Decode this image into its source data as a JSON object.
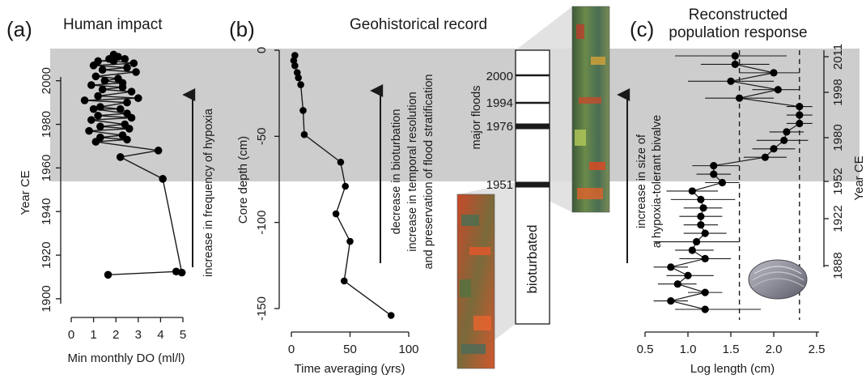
{
  "panel_letters": [
    "(a)",
    "(b)",
    "(c)"
  ],
  "colors": {
    "band": "#cdcdcd",
    "line": "#1a1a1a",
    "marker": "#000000"
  },
  "panel_a": {
    "title": "Human impact",
    "arrow_label": "increase in frequency of hypoxia"
  },
  "panel_b": {
    "title": "Geohistorical record",
    "arrow_label_lines": [
      "decrease in bioturbation",
      "increase in temporal resolution",
      "and preservation of flood stratification"
    ],
    "core": {
      "floods_title": "major floods",
      "flood_years": [
        "2000",
        "1994",
        "1976",
        "1951"
      ],
      "bioturbated_label": "bioturbated"
    }
  },
  "panel_c": {
    "title_lines": [
      "Reconstructed",
      "population response"
    ],
    "arrow_label_lines": [
      "increase in size of",
      "a hypoxia-tolerant bivalve"
    ],
    "right_axis_label": "Year CE",
    "right_axis_ticks": [
      "2011",
      "1998",
      "1980",
      "1952",
      "1922",
      "1888"
    ],
    "dashed_lines_at": [
      1.6,
      2.3
    ]
  },
  "chart_data": [
    {
      "type": "line",
      "panel": "(a)",
      "title": "Human impact",
      "xlabel": "Min monthly DO (ml/l)",
      "ylabel": "Year CE",
      "xlim": [
        0,
        5.2
      ],
      "ylim": [
        1894,
        2015
      ],
      "xticks": [
        0,
        1,
        2,
        3,
        4,
        5
      ],
      "yticks": [
        1900,
        1920,
        1940,
        1960,
        1980,
        2000
      ],
      "shaded_band_y": [
        1950,
        2012
      ],
      "series": [
        {
          "points": [
            [
              1.65,
              1911
            ],
            [
              4.7,
              1912.5
            ],
            [
              4.95,
              1912
            ],
            [
              4.1,
              1955
            ],
            [
              2.2,
              1965
            ],
            [
              3.9,
              1968
            ],
            [
              1.1,
              1972
            ],
            [
              2.5,
              1973
            ],
            [
              1.3,
              1974
            ],
            [
              2.3,
              1975
            ],
            [
              0.8,
              1977
            ],
            [
              2.6,
              1978
            ],
            [
              1.3,
              1979
            ],
            [
              2.4,
              1980
            ],
            [
              0.9,
              1982
            ],
            [
              2.7,
              1983
            ],
            [
              1.2,
              1984
            ],
            [
              2.5,
              1985
            ],
            [
              1.0,
              1987
            ],
            [
              2.2,
              1987
            ],
            [
              1.3,
              1988
            ],
            [
              2.5,
              1990
            ],
            [
              0.6,
              1991
            ],
            [
              3.0,
              1992
            ],
            [
              1.2,
              1993
            ],
            [
              2.7,
              1995
            ],
            [
              1.4,
              1996
            ],
            [
              2.3,
              1997
            ],
            [
              0.9,
              1998
            ],
            [
              2.3,
              1999
            ],
            [
              1.5,
              2000
            ],
            [
              2.1,
              2001
            ],
            [
              1.1,
              2002
            ],
            [
              2.9,
              2004
            ],
            [
              1.4,
              2005
            ],
            [
              2.5,
              2006
            ],
            [
              1.0,
              2007
            ],
            [
              2.8,
              2008
            ],
            [
              1.9,
              2009
            ],
            [
              1.2,
              2009
            ],
            [
              2.4,
              2010
            ],
            [
              1.7,
              2010
            ],
            [
              2.1,
              2011
            ],
            [
              1.9,
              2012
            ]
          ]
        }
      ]
    },
    {
      "type": "line",
      "panel": "(b)",
      "title": "Geohistorical record",
      "xlabel": "Time averaging (yrs)",
      "ylabel": "Core depth (cm)",
      "xlim": [
        0,
        105
      ],
      "ylim": [
        0,
        -158
      ],
      "xticks": [
        0,
        50,
        100
      ],
      "yticks": [
        0,
        -50,
        -100,
        -150
      ],
      "series": [
        {
          "points": [
            [
              3,
              -3
            ],
            [
              2,
              -6
            ],
            [
              3,
              -9
            ],
            [
              5,
              -13
            ],
            [
              6,
              -16
            ],
            [
              8,
              -20
            ],
            [
              10,
              -35
            ],
            [
              11,
              -49
            ],
            [
              42,
              -65
            ],
            [
              46,
              -79
            ],
            [
              38,
              -95
            ],
            [
              50,
              -111
            ],
            [
              45,
              -134
            ],
            [
              85,
              -154
            ]
          ]
        }
      ]
    },
    {
      "type": "scatter",
      "panel": "(c)",
      "xlabel": "Log length (cm)",
      "xlim": [
        0.5,
        2.6
      ],
      "xticks": [
        0.5,
        1.0,
        1.5,
        2.0,
        2.5
      ],
      "yticks": [],
      "points": [
        {
          "x": 1.55,
          "lo": 0.85,
          "hi": 2.15,
          "y": 1
        },
        {
          "x": 1.55,
          "lo": 1.15,
          "hi": 1.95,
          "y": 2
        },
        {
          "x": 2.0,
          "lo": 1.6,
          "hi": 2.3,
          "y": 3
        },
        {
          "x": 1.5,
          "lo": 1.0,
          "hi": 2.0,
          "y": 4
        },
        {
          "x": 2.05,
          "lo": 1.75,
          "hi": 2.3,
          "y": 5
        },
        {
          "x": 1.6,
          "lo": 1.2,
          "hi": 2.0,
          "y": 6
        },
        {
          "x": 2.3,
          "lo": 2.15,
          "hi": 2.45,
          "y": 7
        },
        {
          "x": 2.3,
          "lo": 2.15,
          "hi": 2.45,
          "y": 8
        },
        {
          "x": 2.3,
          "lo": 2.15,
          "hi": 2.45,
          "y": 9
        },
        {
          "x": 2.15,
          "lo": 1.95,
          "hi": 2.35,
          "y": 10
        },
        {
          "x": 2.12,
          "lo": 1.8,
          "hi": 2.4,
          "y": 11
        },
        {
          "x": 2.0,
          "lo": 1.75,
          "hi": 2.25,
          "y": 12
        },
        {
          "x": 1.9,
          "lo": 1.65,
          "hi": 2.15,
          "y": 13
        },
        {
          "x": 1.3,
          "lo": 1.05,
          "hi": 1.6,
          "y": 14
        },
        {
          "x": 1.3,
          "lo": 1.1,
          "hi": 1.5,
          "y": 15
        },
        {
          "x": 1.4,
          "lo": 1.2,
          "hi": 1.6,
          "y": 16
        },
        {
          "x": 1.05,
          "lo": 0.75,
          "hi": 1.35,
          "y": 17
        },
        {
          "x": 1.15,
          "lo": 0.8,
          "hi": 1.55,
          "y": 18
        },
        {
          "x": 1.18,
          "lo": 0.95,
          "hi": 1.4,
          "y": 19
        },
        {
          "x": 1.15,
          "lo": 0.9,
          "hi": 1.4,
          "y": 20
        },
        {
          "x": 1.15,
          "lo": 0.95,
          "hi": 1.35,
          "y": 21
        },
        {
          "x": 1.2,
          "lo": 0.95,
          "hi": 1.45,
          "y": 22
        },
        {
          "x": 1.1,
          "lo": 0.6,
          "hi": 1.6,
          "y": 23
        },
        {
          "x": 1.05,
          "lo": 0.85,
          "hi": 1.3,
          "y": 24
        },
        {
          "x": 1.2,
          "lo": 0.9,
          "hi": 1.5,
          "y": 25
        },
        {
          "x": 0.8,
          "lo": 0.6,
          "hi": 1.0,
          "y": 26
        },
        {
          "x": 1.0,
          "lo": 0.75,
          "hi": 1.3,
          "y": 27
        },
        {
          "x": 0.88,
          "lo": 0.65,
          "hi": 1.1,
          "y": 28
        },
        {
          "x": 1.2,
          "lo": 1.0,
          "hi": 1.4,
          "y": 29
        },
        {
          "x": 0.8,
          "lo": 0.6,
          "hi": 1.0,
          "y": 30
        },
        {
          "x": 1.2,
          "lo": 0.85,
          "hi": 1.85,
          "y": 31
        }
      ]
    }
  ]
}
